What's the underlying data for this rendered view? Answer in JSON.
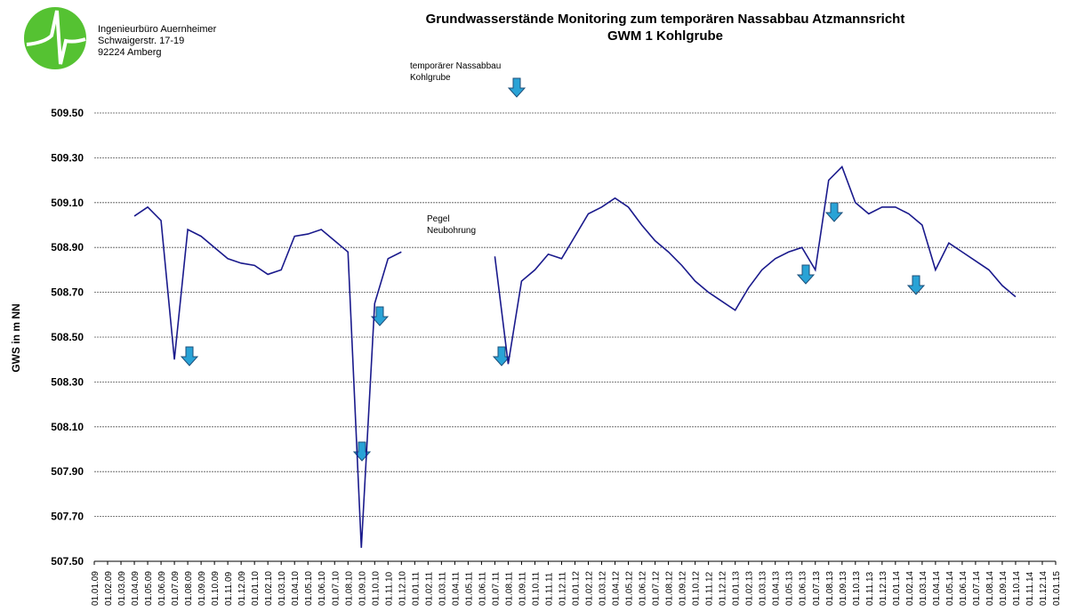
{
  "header": {
    "company": "Ingenieurbüro Auernheimer",
    "street": "Schwaigerstr. 17-19",
    "city": "92224 Amberg"
  },
  "chart_data": {
    "type": "line",
    "title": "Grundwasserstände Monitoring zum temporären Nassabbau Atzmannsricht",
    "subtitle": "GWM 1 Kohlgrube",
    "y_label": "GWS in m NN",
    "annotations": [
      "temporärer Nassabbau",
      "Kohlgrube",
      "Pegel",
      "Neubohrung"
    ],
    "categories": [
      "01.01.09",
      "01.02.09",
      "01.03.09",
      "01.04.09",
      "01.05.09",
      "01.06.09",
      "01.07.09",
      "01.08.09",
      "01.09.09",
      "01.10.09",
      "01.11.09",
      "01.12.09",
      "01.01.10",
      "01.02.10",
      "01.03.10",
      "01.04.10",
      "01.05.10",
      "01.06.10",
      "01.07.10",
      "01.08.10",
      "01.09.10",
      "01.10.10",
      "01.11.10",
      "01.12.10",
      "01.01.11",
      "01.02.11",
      "01.03.11",
      "01.04.11",
      "01.05.11",
      "01.06.11",
      "01.07.11",
      "01.08.11",
      "01.09.11",
      "01.10.11",
      "01.11.11",
      "01.12.11",
      "01.01.12",
      "01.02.12",
      "01.03.12",
      "01.04.12",
      "01.05.12",
      "01.06.12",
      "01.07.12",
      "01.08.12",
      "01.09.12",
      "01.10.12",
      "01.11.12",
      "01.12.12",
      "01.01.13",
      "01.02.13",
      "01.03.13",
      "01.04.13",
      "01.05.13",
      "01.06.13",
      "01.07.13",
      "01.08.13",
      "01.09.13",
      "01.10.13",
      "01.11.13",
      "01.12.13",
      "01.01.14",
      "01.02.14",
      "01.03.14",
      "01.04.14",
      "01.05.14",
      "01.06.14",
      "01.07.14",
      "01.08.14",
      "01.09.14",
      "01.10.14",
      "01.11.14",
      "01.12.14",
      "01.01.15"
    ],
    "series": [
      {
        "name": "GWM 1",
        "color": "#1a1a8c",
        "values": [
          null,
          null,
          null,
          509.04,
          509.08,
          509.02,
          508.4,
          508.98,
          508.95,
          508.9,
          508.85,
          508.83,
          508.82,
          508.78,
          508.8,
          508.95,
          508.96,
          508.98,
          508.93,
          508.88,
          507.56,
          508.65,
          508.85,
          508.88,
          null,
          null,
          null,
          null,
          null,
          null,
          508.86,
          508.38,
          508.75,
          508.8,
          508.87,
          508.85,
          508.95,
          509.05,
          509.08,
          509.12,
          509.08,
          509.0,
          508.93,
          508.88,
          508.82,
          508.75,
          508.7,
          508.66,
          508.62,
          508.72,
          508.8,
          508.85,
          508.88,
          508.9,
          508.8,
          509.2,
          509.26,
          509.1,
          509.05,
          509.08,
          509.08,
          509.05,
          509.0,
          508.8,
          508.92,
          508.88,
          508.84,
          508.8,
          508.73,
          508.68,
          null,
          null,
          null
        ]
      }
    ],
    "ylim": [
      507.5,
      509.5
    ],
    "yticks": [
      {
        "value": 507.5,
        "label": "507.50"
      },
      {
        "value": 507.7,
        "label": "507.70"
      },
      {
        "value": 507.9,
        "label": "507.90"
      },
      {
        "value": 508.1,
        "label": "508.10"
      },
      {
        "value": 508.3,
        "label": "508.30"
      },
      {
        "value": 508.5,
        "label": "508.50"
      },
      {
        "value": 508.7,
        "label": "508.70"
      },
      {
        "value": 508.9,
        "label": "508.90"
      },
      {
        "value": 509.1,
        "label": "509.10"
      },
      {
        "value": 509.3,
        "label": "509.30"
      },
      {
        "value": 509.5,
        "label": "509.50"
      }
    ],
    "grid": true
  }
}
